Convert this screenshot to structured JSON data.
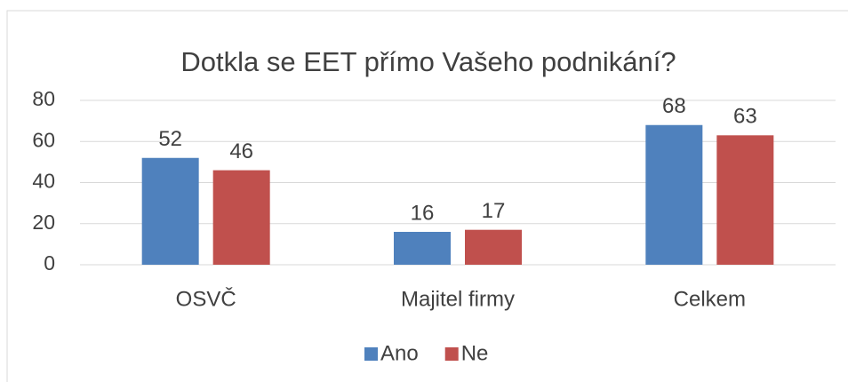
{
  "chart_data": {
    "type": "bar",
    "title": "Dotkla se EET přímo Vašeho podnikání?",
    "categories": [
      "OSVČ",
      "Majitel firmy",
      "Celkem"
    ],
    "series": [
      {
        "name": "Ano",
        "color": "#4f81bd",
        "values": [
          52,
          16,
          68
        ]
      },
      {
        "name": "Ne",
        "color": "#c0504d",
        "values": [
          46,
          17,
          63
        ]
      }
    ],
    "ylim": [
      0,
      80
    ],
    "yticks": [
      0,
      20,
      40,
      60,
      80
    ],
    "grid": true,
    "legend": "bottom"
  }
}
